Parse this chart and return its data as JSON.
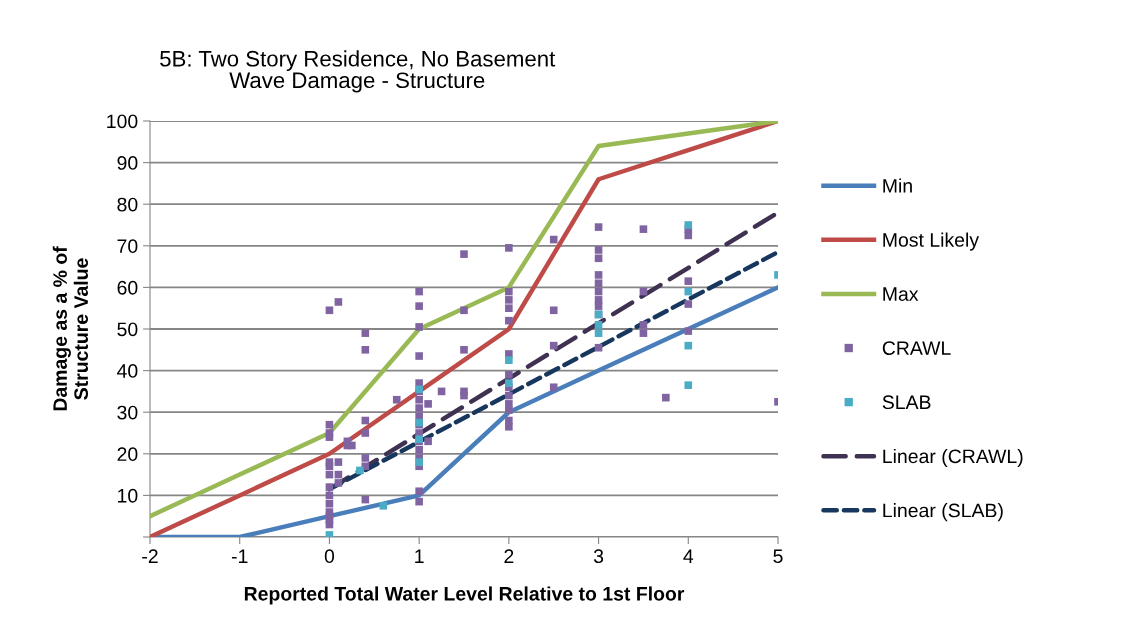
{
  "chart_data": {
    "type": "line",
    "title": "5B: Two Story Residence, No Basement\nWave Damage - Structure",
    "xlabel": "Reported Total Water Level Relative to 1st Floor",
    "ylabel": "Damage as a % of\nStructure Value",
    "xlim": [
      -2,
      5
    ],
    "xticks": [
      -2,
      -1,
      0,
      1,
      2,
      3,
      4,
      5
    ],
    "ylim": [
      0,
      100
    ],
    "yticks": [
      {
        "value": 0,
        "label": null
      },
      10,
      20,
      30,
      40,
      50,
      60,
      70,
      80,
      90,
      100
    ],
    "grid": "y",
    "legend": "right",
    "series": [
      {
        "name": "Min",
        "color": "#4a7ebb",
        "line_style": "solid",
        "marker": "none",
        "x": [
          -2,
          -1,
          0,
          1,
          2,
          3,
          4,
          5
        ],
        "values": [
          0,
          0,
          5,
          10,
          30,
          40,
          50,
          60
        ]
      },
      {
        "name": "Most Likely",
        "color": "#be4b48",
        "line_style": "solid",
        "marker": "none",
        "x": [
          -2,
          -1,
          0,
          1,
          2,
          3,
          4,
          5
        ],
        "values": [
          0,
          10,
          20,
          35,
          50,
          86,
          93,
          100
        ]
      },
      {
        "name": "Max",
        "color": "#98b954",
        "line_style": "solid",
        "marker": "none",
        "x": [
          -2,
          -1,
          0,
          1,
          2,
          3,
          4,
          5
        ],
        "values": [
          5,
          15,
          25,
          50,
          60,
          94,
          97,
          100
        ]
      },
      {
        "name": "CRAWL",
        "type": "scatter",
        "color": "#8064a2",
        "marker": "square",
        "x": [
          0,
          0,
          0,
          0,
          0,
          0,
          0,
          0,
          0,
          0,
          0,
          0,
          0,
          0,
          0.1,
          0.1,
          0.1,
          0.1,
          0.2,
          0.2,
          0.25,
          0.4,
          0.4,
          0.4,
          0.4,
          0.4,
          0.4,
          0.4,
          0.75,
          1,
          1,
          1,
          1,
          1,
          1,
          1,
          1,
          1,
          1,
          1,
          1,
          1,
          1,
          1,
          1,
          1,
          1.1,
          1.1,
          1.25,
          1.5,
          1.5,
          1.5,
          1.5,
          1.5,
          2,
          2,
          2,
          2,
          2,
          2,
          2,
          2,
          2,
          2,
          2,
          2,
          2,
          2.5,
          2.5,
          2.5,
          2.5,
          3,
          3,
          3,
          3,
          3,
          3,
          3,
          3,
          3,
          3,
          3.5,
          3.5,
          3.5,
          3.5,
          3.75,
          4,
          4,
          4,
          4,
          4,
          5
        ],
        "values": [
          54.5,
          27,
          25,
          24,
          18,
          17,
          15,
          12,
          10,
          8,
          6,
          5,
          4,
          3,
          56.5,
          18,
          15,
          13,
          23,
          22,
          22,
          49,
          45,
          28,
          25,
          19,
          17,
          9,
          33,
          59,
          55.5,
          50.5,
          43.5,
          37,
          35,
          33,
          31,
          29,
          27,
          25,
          23,
          21,
          19,
          17,
          11,
          8.5,
          32,
          23,
          35,
          68,
          54.5,
          45,
          35,
          34,
          69.5,
          59,
          57,
          55,
          52,
          44,
          39,
          36,
          34,
          32,
          30.5,
          28,
          26.5,
          71.5,
          54.5,
          46,
          36,
          74.5,
          69,
          67,
          63,
          61,
          59,
          57,
          55.5,
          53.5,
          45.5,
          74,
          59,
          51,
          49,
          33.5,
          74,
          72.5,
          61.5,
          56,
          49.5,
          32.5
        ]
      },
      {
        "name": "SLAB",
        "type": "scatter",
        "color": "#4bacc6",
        "marker": "square",
        "x": [
          0,
          0.34,
          0.6,
          1,
          1,
          1,
          1,
          2,
          2,
          3,
          3,
          3,
          4,
          4,
          4,
          4,
          5
        ],
        "values": [
          0.5,
          16,
          7.5,
          35.5,
          27.5,
          23.5,
          18,
          42.5,
          37,
          53.5,
          51,
          49,
          75,
          59,
          46,
          36.5,
          63
        ]
      },
      {
        "name": "Linear (CRAWL)",
        "color": "#3f3151",
        "line_style": "dashed",
        "marker": "none",
        "x": [
          0,
          5
        ],
        "values": [
          11.5,
          78
        ]
      },
      {
        "name": "Linear (SLAB)",
        "color": "#17375e",
        "line_style": "dotted",
        "marker": "none",
        "x": [
          0,
          5
        ],
        "values": [
          11.5,
          68.5
        ]
      }
    ]
  }
}
